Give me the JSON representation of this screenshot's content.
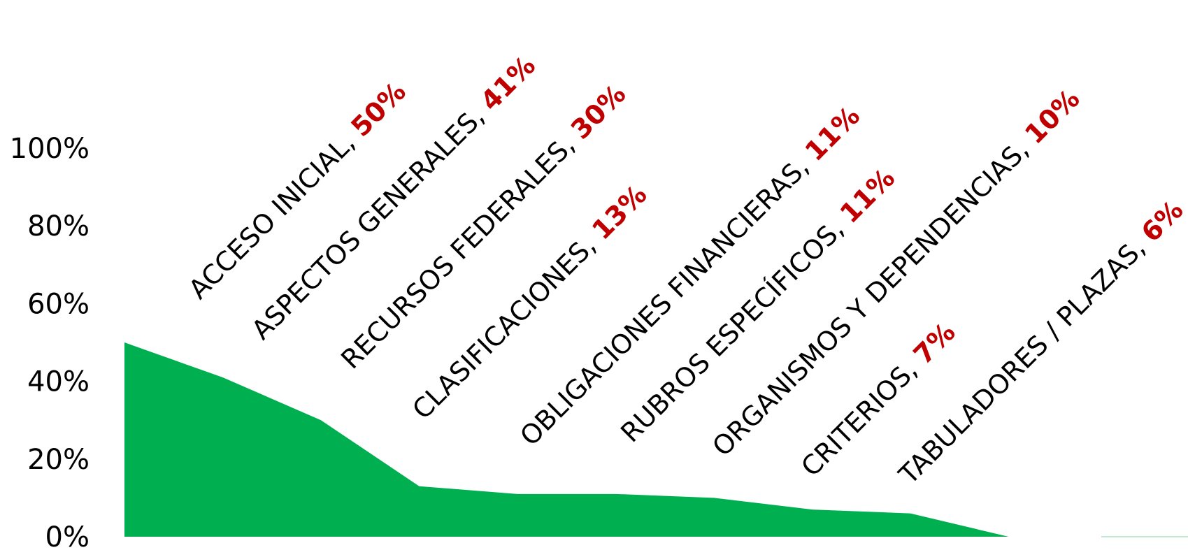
{
  "chart_data": {
    "type": "area",
    "title": "",
    "xlabel": "",
    "ylabel": "",
    "ylim": [
      0,
      100
    ],
    "yticks": [
      0,
      20,
      40,
      60,
      80,
      100
    ],
    "ytick_labels": [
      "0%",
      "20%",
      "40%",
      "60%",
      "80%",
      "100%"
    ],
    "grid": false,
    "legend": "none",
    "area_color": "#00B050",
    "label_value_color": "#C00000",
    "categories": [
      "ACCESO INICIAL",
      "ASPECTOS GENERALES",
      "RECURSOS FEDERALES",
      "CLASIFICACIONES",
      "OBLIGACIONES FINANCIERAS",
      "RUBROS ESPECÍFICOS",
      "ORGANISMOS Y DEPENDENCIAS",
      "CRITERIOS",
      "TABULADORES / PLAZAS",
      "",
      ""
    ],
    "values": [
      50,
      41,
      30,
      13,
      11,
      11,
      10,
      7,
      6,
      0,
      0
    ],
    "label_texts": [
      {
        "name": "ACCESO INICIAL, ",
        "value": "50%"
      },
      {
        "name": "ASPECTOS GENERALES, ",
        "value": "41%"
      },
      {
        "name": "RECURSOS FEDERALES, ",
        "value": "30%"
      },
      {
        "name": "CLASIFICACIONES, ",
        "value": "13%"
      },
      {
        "name": "OBLIGACIONES FINANCIERAS, ",
        "value": "11%"
      },
      {
        "name": "RUBROS ESPECÍFICOS, ",
        "value": "11%"
      },
      {
        "name": "ORGANISMOS Y DEPENDENCIAS, ",
        "value": "10%"
      },
      {
        "name": "CRITERIOS, ",
        "value": "7%"
      },
      {
        "name": "TABULADORES / PLAZAS, ",
        "value": "6%"
      }
    ]
  }
}
